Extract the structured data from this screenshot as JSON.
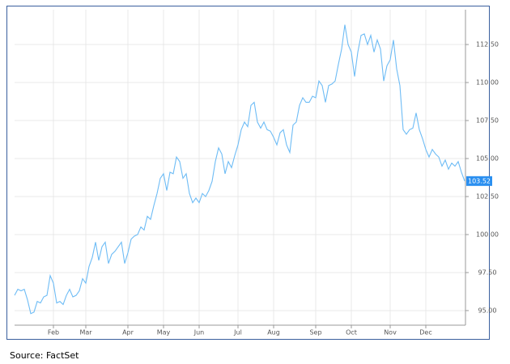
{
  "chart_data": {
    "type": "line",
    "source": "Source: FactSet",
    "series": [
      {
        "name": null,
        "color": "#6ebcf5",
        "values": [
          96.0,
          96.4,
          96.3,
          96.4,
          95.7,
          94.8,
          94.9,
          95.6,
          95.5,
          95.9,
          96.0,
          97.3,
          96.8,
          95.5,
          95.6,
          95.4,
          96.0,
          96.4,
          95.9,
          96.0,
          96.3,
          97.1,
          96.8,
          97.9,
          98.5,
          99.5,
          98.3,
          99.2,
          99.5,
          98.1,
          98.7,
          98.9,
          99.2,
          99.5,
          98.1,
          98.8,
          99.7,
          99.9,
          100.0,
          100.5,
          100.3,
          101.2,
          101.0,
          101.9,
          102.7,
          103.7,
          104.0,
          102.9,
          104.1,
          104.0,
          105.1,
          104.8,
          103.7,
          104.0,
          102.7,
          102.1,
          102.4,
          102.1,
          102.7,
          102.5,
          102.9,
          103.5,
          104.8,
          105.7,
          105.3,
          104.0,
          104.8,
          104.4,
          105.2,
          105.9,
          106.9,
          107.4,
          107.1,
          108.5,
          108.7,
          107.4,
          107.0,
          107.4,
          106.9,
          106.8,
          106.4,
          105.9,
          106.7,
          106.9,
          105.9,
          105.4,
          107.2,
          107.4,
          108.5,
          109.0,
          108.7,
          108.7,
          109.1,
          109.0,
          110.1,
          109.8,
          108.7,
          109.8,
          109.9,
          110.1,
          111.2,
          112.2,
          113.8,
          112.5,
          112.0,
          110.4,
          112.0,
          113.1,
          113.2,
          112.5,
          113.1,
          112.0,
          112.8,
          112.2,
          110.1,
          111.1,
          111.5,
          112.8,
          110.9,
          109.8,
          106.9,
          106.6,
          106.9,
          107.0,
          108.0,
          106.9,
          106.3,
          105.6,
          105.1,
          105.6,
          105.3,
          105.1,
          104.5,
          104.9,
          104.3,
          104.7,
          104.5,
          104.8,
          104.1,
          103.52
        ]
      }
    ],
    "xlim": [
      0,
      139
    ],
    "xticks": [
      {
        "value": 12,
        "label": "Feb"
      },
      {
        "value": 22,
        "label": "Mar"
      },
      {
        "value": 35,
        "label": "Apr"
      },
      {
        "value": 46,
        "label": "May"
      },
      {
        "value": 57,
        "label": "Jun"
      },
      {
        "value": 69,
        "label": "Jul"
      },
      {
        "value": 80,
        "label": "Aug"
      },
      {
        "value": 93,
        "label": "Sep"
      },
      {
        "value": 104,
        "label": "Oct"
      },
      {
        "value": 116,
        "label": "Nov"
      },
      {
        "value": 127,
        "label": "Dec"
      }
    ],
    "ylim": [
      94.04,
      114.79
    ],
    "yticks": [
      {
        "value": 95,
        "label": "95.00"
      },
      {
        "value": 97.5,
        "label": "97.50"
      },
      {
        "value": 100,
        "label": "100.00"
      },
      {
        "value": 102.5,
        "label": "102.50"
      },
      {
        "value": 105,
        "label": "105.00"
      },
      {
        "value": 107.5,
        "label": "107.50"
      },
      {
        "value": 110,
        "label": "110.00"
      },
      {
        "value": 112.5,
        "label": "112.50"
      }
    ],
    "grid": true,
    "last_value_color": "#2a8ff0"
  }
}
